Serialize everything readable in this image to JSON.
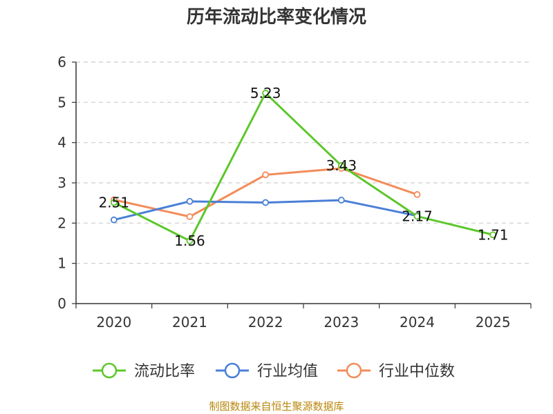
{
  "chart_data": {
    "type": "line",
    "title": "历年流动比率变化情况",
    "categories": [
      "2020",
      "2021",
      "2022",
      "2023",
      "2024",
      "2025"
    ],
    "ylim": [
      0,
      6
    ],
    "yticks": [
      0,
      1,
      2,
      3,
      4,
      5,
      6
    ],
    "grid": "dashed horizontal",
    "legend_position": "bottom",
    "series": [
      {
        "name": "流动比率",
        "color": "#5cc72a",
        "values": [
          2.51,
          1.56,
          5.23,
          3.43,
          2.17,
          1.71
        ],
        "labels": [
          "2.51",
          "1.56",
          "5.23",
          "3.43",
          "2.17",
          "1.71"
        ]
      },
      {
        "name": "行业均值",
        "color": "#4a7fd6",
        "values": [
          2.08,
          2.54,
          2.51,
          2.57,
          2.18,
          null
        ]
      },
      {
        "name": "行业中位数",
        "color": "#f28c5a",
        "values": [
          2.58,
          2.16,
          3.2,
          3.36,
          2.71,
          null
        ]
      }
    ]
  },
  "source": "制图数据来自恒生聚源数据库"
}
